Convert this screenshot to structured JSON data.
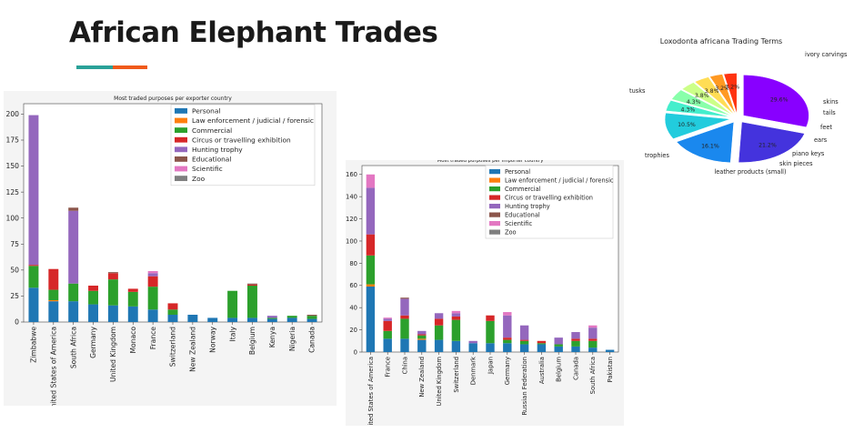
{
  "slide": {
    "title": "African Elephant Trades"
  },
  "legend_items": [
    "Personal",
    "Law enforcement / judicial / forensic",
    "Commercial",
    "Circus or travelling exhibition",
    "Hunting trophy",
    "Educational",
    "Scientific",
    "Zoo"
  ],
  "colors": {
    "Personal": "#1f77b4",
    "Law enforcement / judicial / forensic": "#ff7f0e",
    "Commercial": "#2ca02c",
    "Circus or travelling exhibition": "#d62728",
    "Hunting trophy": "#9467bd",
    "Educational": "#8c564b",
    "Scientific": "#e377c2",
    "Zoo": "#7f7f7f"
  },
  "chart_data": [
    {
      "type": "bar",
      "stacked": true,
      "title": "Most traded purposes per exporter country",
      "xlabel": "",
      "ylabel": "",
      "ylim": [
        0,
        210
      ],
      "yticks": [
        0,
        25,
        50,
        75,
        100,
        125,
        150,
        175,
        200
      ],
      "legend_position": "top-right",
      "categories": [
        "Zimbabwe",
        "United States of America",
        "South Africa",
        "Germany",
        "United Kingdom",
        "Monaco",
        "France",
        "Switzerland",
        "New Zealand",
        "Norway",
        "Italy",
        "Belgium",
        "Kenya",
        "Nigeria",
        "Canada"
      ],
      "series": [
        {
          "name": "Personal",
          "values": [
            33,
            20,
            20,
            17,
            16,
            15,
            12,
            7,
            7,
            4,
            4,
            4,
            3,
            4,
            3
          ]
        },
        {
          "name": "Law enforcement / judicial / forensic",
          "values": [
            0,
            1,
            0,
            0,
            0,
            0,
            0,
            0,
            0,
            0,
            0,
            0,
            0,
            0,
            0
          ]
        },
        {
          "name": "Commercial",
          "values": [
            21,
            10,
            17,
            13,
            25,
            14,
            22,
            5,
            0,
            0,
            26,
            31,
            1,
            2,
            3
          ]
        },
        {
          "name": "Circus or travelling exhibition",
          "values": [
            1,
            20,
            0,
            5,
            6,
            3,
            10,
            6,
            0,
            0,
            0,
            1,
            0,
            0,
            0
          ]
        },
        {
          "name": "Hunting trophy",
          "values": [
            144,
            0,
            70,
            0,
            0,
            0,
            3,
            0,
            0,
            0,
            0,
            0,
            2,
            0,
            0
          ]
        },
        {
          "name": "Educational",
          "values": [
            0,
            0,
            3,
            0,
            1,
            0,
            0,
            0,
            0,
            0,
            0,
            1,
            0,
            0,
            1
          ]
        },
        {
          "name": "Scientific",
          "values": [
            0,
            0,
            0,
            0,
            0,
            0,
            2,
            0,
            0,
            0,
            0,
            0,
            0,
            0,
            0
          ]
        },
        {
          "name": "Zoo",
          "values": [
            0,
            0,
            0,
            0,
            0,
            0,
            0,
            0,
            0,
            0,
            0,
            0,
            0,
            0,
            0
          ]
        }
      ]
    },
    {
      "type": "bar",
      "stacked": true,
      "title": "Most traded purposes per importer country",
      "xlabel": "",
      "ylabel": "",
      "ylim": [
        0,
        168
      ],
      "yticks": [
        0,
        20,
        40,
        60,
        80,
        100,
        120,
        140,
        160
      ],
      "legend_position": "top-right",
      "categories": [
        "United States of America",
        "France",
        "China",
        "New Zealand",
        "United Kingdom",
        "Switzerland",
        "Denmark",
        "Japan",
        "Germany",
        "Russian Federation",
        "Australia",
        "Belgium",
        "Canada",
        "South Africa",
        "Pakistan"
      ],
      "series": [
        {
          "name": "Personal",
          "values": [
            59,
            12,
            12,
            11,
            11,
            10,
            8,
            8,
            8,
            7,
            7,
            5,
            5,
            4,
            2
          ]
        },
        {
          "name": "Law enforcement / judicial / forensic",
          "values": [
            2,
            0,
            0,
            1,
            0,
            0,
            0,
            0,
            0,
            0,
            0,
            0,
            0,
            0,
            0
          ]
        },
        {
          "name": "Commercial",
          "values": [
            26,
            7,
            18,
            3,
            13,
            19,
            0,
            20,
            3,
            3,
            1,
            2,
            5,
            6,
            0
          ]
        },
        {
          "name": "Circus or travelling exhibition",
          "values": [
            19,
            9,
            3,
            1,
            6,
            3,
            0,
            5,
            2,
            1,
            2,
            0,
            2,
            2,
            0
          ]
        },
        {
          "name": "Hunting trophy",
          "values": [
            42,
            2,
            15,
            3,
            5,
            3,
            2,
            0,
            20,
            13,
            0,
            6,
            6,
            10,
            0
          ]
        },
        {
          "name": "Educational",
          "values": [
            0,
            0,
            1,
            0,
            0,
            0,
            0,
            0,
            0,
            0,
            0,
            0,
            0,
            0,
            0
          ]
        },
        {
          "name": "Scientific",
          "values": [
            12,
            1,
            0,
            0,
            0,
            2,
            0,
            0,
            3,
            0,
            0,
            0,
            0,
            2,
            0
          ]
        },
        {
          "name": "Zoo",
          "values": [
            0,
            0,
            0,
            0,
            0,
            0,
            0,
            0,
            0,
            0,
            0,
            0,
            0,
            0,
            0
          ]
        }
      ]
    },
    {
      "type": "pie",
      "title": "Loxodonta africana Trading Terms",
      "labels": [
        "ivory carvings",
        "tusks",
        "trophies",
        "leather products (small)",
        "skin pieces",
        "piano keys",
        "ears",
        "feet",
        "tails",
        "skins"
      ],
      "values": [
        29.6,
        21.2,
        16.1,
        10.5,
        4.3,
        4.3,
        3.8,
        3.8,
        3.2,
        3.2
      ],
      "value_labels": [
        "29.6%",
        "21.2%",
        "16.1%",
        "10.5%",
        "4.3%",
        "4.3%",
        "3.8%",
        "3.8%",
        "3.2%",
        "3.2%"
      ],
      "colors": [
        "#8800ff",
        "#4433dd",
        "#1a88ee",
        "#22ccdd",
        "#44eecc",
        "#88ffaa",
        "#ccff88",
        "#ffdd55",
        "#ff9922",
        "#ff3311"
      ],
      "exploded": true
    }
  ]
}
